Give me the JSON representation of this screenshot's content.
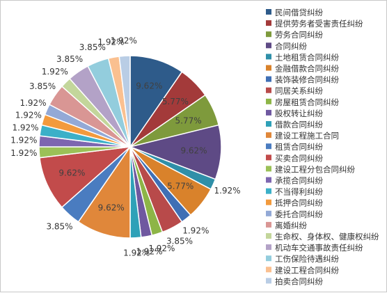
{
  "chart_data": {
    "type": "pie",
    "title": "",
    "legend_position": "right",
    "slices": [
      {
        "label": "民间借贷纠纷",
        "value": 9.62,
        "display": "9.62%",
        "color": "#2E5B8A"
      },
      {
        "label": "提供劳务者受害责任纠纷",
        "value": 5.77,
        "display": "5.77%",
        "color": "#A33A3A"
      },
      {
        "label": "劳务合同纠纷",
        "value": 5.77,
        "display": "5.77%",
        "color": "#7E9A3C"
      },
      {
        "label": "合同纠纷",
        "value": 9.62,
        "display": "9.62%",
        "color": "#5E4A85"
      },
      {
        "label": "土地租赁合同纠纷",
        "value": 1.92,
        "display": "1.92%",
        "color": "#2F8FA8"
      },
      {
        "label": "金融借款合同纠纷",
        "value": 5.77,
        "display": "5.77%",
        "color": "#D9822B"
      },
      {
        "label": "装饰装修合同纠纷",
        "value": 1.92,
        "display": "1.92%",
        "color": "#3F6FB5"
      },
      {
        "label": "同居关系纠纷",
        "value": 3.85,
        "display": "3.85%",
        "color": "#B84A4A"
      },
      {
        "label": "房屋租赁合同纠纷",
        "value": 1.92,
        "display": "1.92%",
        "color": "#8DB547"
      },
      {
        "label": "股权转让纠纷",
        "value": 1.92,
        "display": "1.92%",
        "color": "#6F58A0"
      },
      {
        "label": "借款合同纠纷",
        "value": 1.92,
        "display": "1.92%",
        "color": "#2FA1B8"
      },
      {
        "label": "建设工程施工合同",
        "value": 9.62,
        "display": "9.62%",
        "color": "#E0873A"
      },
      {
        "label": "租赁合同纠纷",
        "value": 3.85,
        "display": "3.85%",
        "color": "#4A7CC0"
      },
      {
        "label": "买卖合同纠纷",
        "value": 9.62,
        "display": "9.62%",
        "color": "#C24B4B"
      },
      {
        "label": "建设工程分包合同纠纷",
        "value": 1.92,
        "display": "1.92%",
        "color": "#9BC157"
      },
      {
        "label": "承揽合同纠纷",
        "value": 1.92,
        "display": "1.92%",
        "color": "#7D66B0"
      },
      {
        "label": "不当得利纠纷",
        "value": 1.92,
        "display": "1.92%",
        "color": "#3BB0C8"
      },
      {
        "label": "抵押合同纠纷",
        "value": 1.92,
        "display": "1.92%",
        "color": "#F29A3D"
      },
      {
        "label": "委托合同纠纷",
        "value": 1.92,
        "display": "1.92%",
        "color": "#93A9D6"
      },
      {
        "label": "离婚纠纷",
        "value": 3.85,
        "display": "3.85%",
        "color": "#D99694"
      },
      {
        "label": "生命权、身体权、健康权纠纷",
        "value": 1.92,
        "display": "1.92%",
        "color": "#C3D69B"
      },
      {
        "label": "机动车交通事故责任纠纷",
        "value": 3.85,
        "display": "3.85%",
        "color": "#B3A2C7"
      },
      {
        "label": "工伤保险待遇纠纷",
        "value": 3.85,
        "display": "3.85%",
        "color": "#93CDDD"
      },
      {
        "label": "建设工程合同纠纷",
        "value": 1.92,
        "display": "1.92%",
        "color": "#FAC090"
      },
      {
        "label": "拍卖合同纠纷",
        "value": 1.92,
        "display": "1.92%",
        "color": "#B9CDE5"
      }
    ]
  }
}
